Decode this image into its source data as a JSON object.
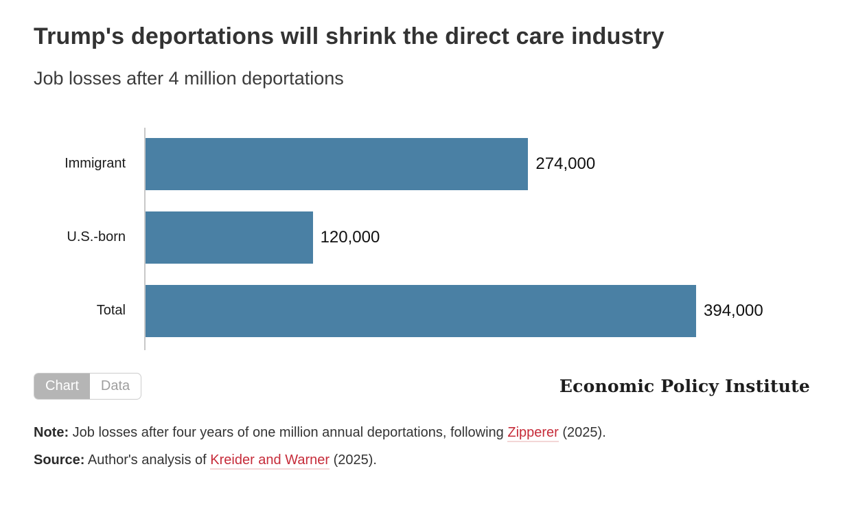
{
  "header": {
    "title": "Trump's deportations will shrink the direct care industry",
    "subtitle": "Job losses after 4 million deportations"
  },
  "chart_data": {
    "type": "bar",
    "orientation": "horizontal",
    "title": "Job losses after 4 million deportations",
    "categories": [
      "Immigrant",
      "U.S.-born",
      "Total"
    ],
    "values": [
      274000,
      120000,
      394000
    ],
    "value_labels": [
      "274,000",
      "120,000",
      "394,000"
    ],
    "xlabel": "",
    "ylabel": "",
    "xlim": [
      0,
      394000
    ],
    "grid": false,
    "legend": "none",
    "bar_color": "#4a80a4"
  },
  "toolbar": {
    "chart_label": "Chart",
    "data_label": "Data",
    "active": "Chart"
  },
  "branding": {
    "wordmark": "Economic Policy Institute"
  },
  "footnotes": {
    "note_label": "Note:",
    "note_pre": " Job losses after four years of one million annual deportations, following ",
    "note_link": "Zipperer",
    "note_post": " (2025).",
    "source_label": "Source:",
    "source_pre": " Author's analysis of ",
    "source_link": "Kreider and Warner",
    "source_post": " (2025)."
  },
  "colors": {
    "bar": "#4a80a4",
    "axis_line": "#c8c8c8",
    "title": "#333333",
    "link": "#c62b39",
    "link_underline": "#f3d6d6",
    "toggle_active_bg": "#b5b5b5",
    "toggle_border": "#cccccc",
    "toggle_inactive_text": "#9e9e9e"
  }
}
